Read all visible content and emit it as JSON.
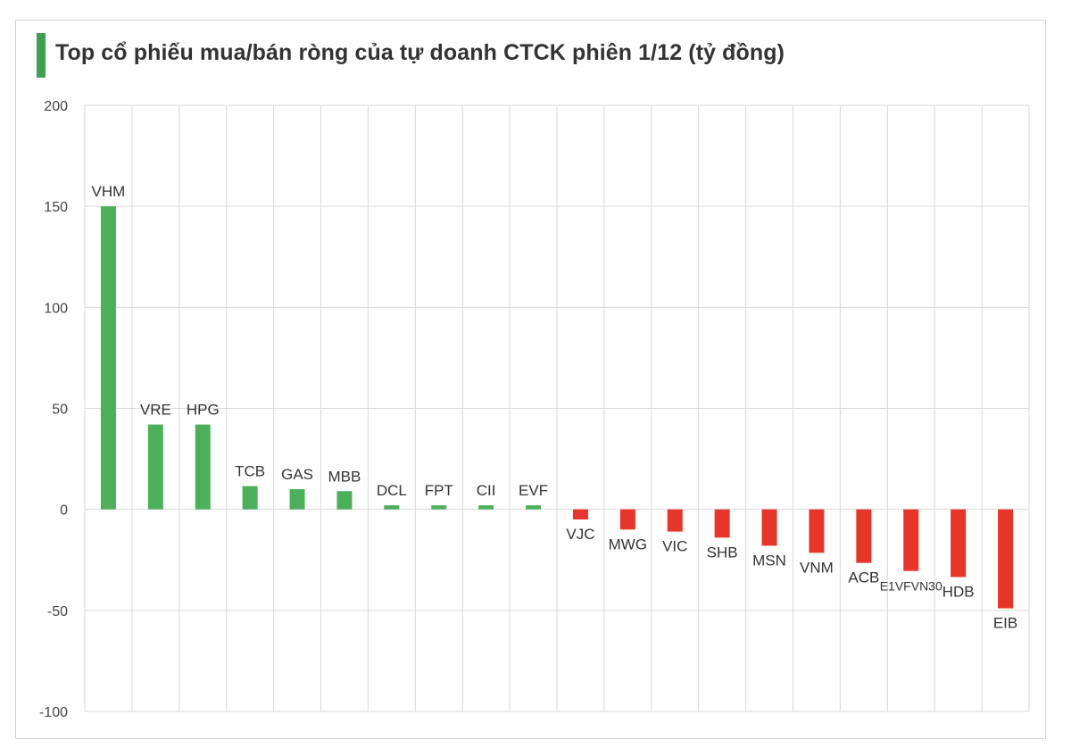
{
  "header": {
    "title": "Top cổ phiếu mua/bán ròng của tự doanh CTCK phiên 1/12 (tỷ đồng)"
  },
  "chart_data": {
    "type": "bar",
    "title": "Top cổ phiếu mua/bán ròng của tự doanh CTCK phiên 1/12 (tỷ đồng)",
    "xlabel": "",
    "ylabel": "",
    "ylim": [
      -100,
      200
    ],
    "yticks": [
      200,
      150,
      100,
      50,
      0,
      -50,
      -100
    ],
    "grid": true,
    "legend": "none",
    "categories": [
      "VHM",
      "VRE",
      "HPG",
      "TCB",
      "GAS",
      "MBB",
      "DCL",
      "FPT",
      "CII",
      "EVF",
      "VJC",
      "MWG",
      "VIC",
      "SHB",
      "MSN",
      "VNM",
      "ACB",
      "E1VFVN30",
      "HDB",
      "EIB"
    ],
    "values": [
      150,
      42,
      42,
      11.5,
      10,
      9,
      2,
      2,
      2,
      2,
      -5,
      -10,
      -11,
      -14,
      -18,
      -21.5,
      -26.5,
      -30.5,
      -33.5,
      -49
    ],
    "colors": {
      "positive": "#4caf5a",
      "negative": "#e8352a",
      "grid": "#d9d9d9"
    }
  }
}
